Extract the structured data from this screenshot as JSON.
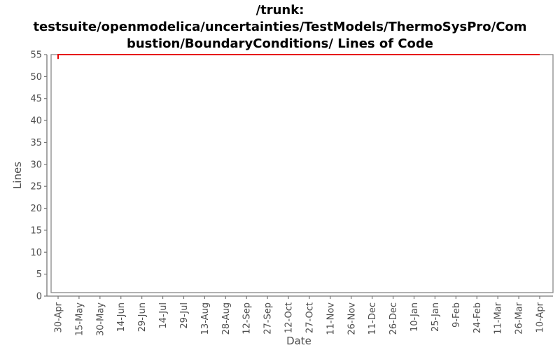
{
  "title": {
    "full": "/trunk: testsuite/openmodelica/uncertainties/TestModels/ThermoSysPro/Combustion/BoundaryConditions/ Lines of Code",
    "line1": "/trunk:",
    "line2": "testsuite/openmodelica/uncertainties/TestModels/ThermoSysPro/Com",
    "line3": "bustion/BoundaryConditions/ Lines of Code"
  },
  "chart_data": {
    "type": "line",
    "title": "/trunk: testsuite/openmodelica/uncertainties/TestModels/ThermoSysPro/Combustion/BoundaryConditions/ Lines of Code",
    "xlabel": "Date",
    "ylabel": "Lines",
    "x_tick_labels": [
      "30-Apr",
      "15-May",
      "30-May",
      "14-Jun",
      "29-Jun",
      "14-Jul",
      "29-Jul",
      "13-Aug",
      "28-Aug",
      "12-Sep",
      "27-Sep",
      "12-Oct",
      "27-Oct",
      "11-Nov",
      "26-Nov",
      "11-Dec",
      "26-Dec",
      "10-Jan",
      "25-Jan",
      "9-Feb",
      "24-Feb",
      "11-Mar",
      "26-Mar",
      "10-Apr"
    ],
    "y_ticks": [
      0,
      5,
      10,
      15,
      20,
      25,
      30,
      35,
      40,
      45,
      50,
      55
    ],
    "ylim": [
      0,
      55
    ],
    "grid": false,
    "legend": "none",
    "series": [
      {
        "name": "Lines of Code",
        "color": "#e60000",
        "points": [
          {
            "x": "30-Apr",
            "y": 54
          },
          {
            "x": "30-Apr",
            "y": 55
          },
          {
            "x": "10-Apr",
            "y": 55
          }
        ]
      }
    ]
  },
  "colors": {
    "line": "#e60000",
    "frame": "#888888",
    "axis": "#777777",
    "tick_label": "#4d4d4d",
    "axis_label": "#4d4d4d",
    "title": "#000000"
  }
}
